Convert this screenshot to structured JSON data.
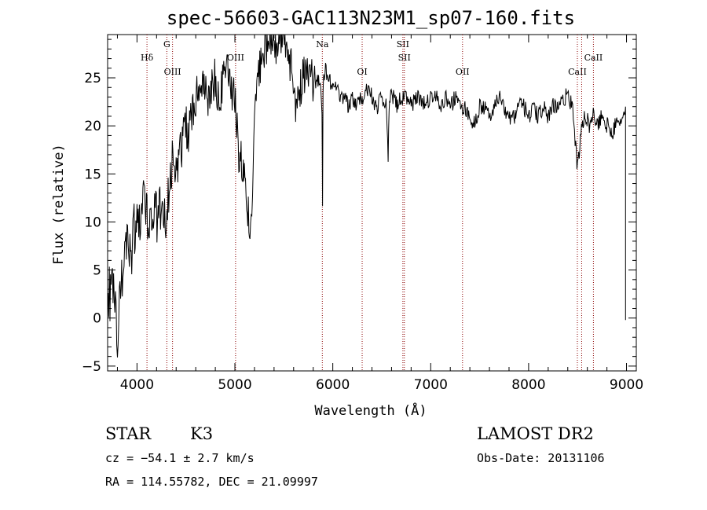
{
  "chart_data": {
    "type": "line",
    "title": "spec-56603-GAC113N23M1_sp07-160.fits",
    "xlabel": "Wavelength (Å)",
    "ylabel": "Flux (relative)",
    "xlim": [
      3700,
      9100
    ],
    "ylim": [
      -5.5,
      29.5
    ],
    "x_ticks": [
      4000,
      5000,
      6000,
      7000,
      8000,
      9000
    ],
    "x_tick_labels": [
      "4000",
      "5000",
      "6000",
      "7000",
      "8000",
      "9000"
    ],
    "y_ticks": [
      -5,
      0,
      5,
      10,
      15,
      20,
      25
    ],
    "y_tick_labels": [
      "−5",
      "0",
      "5",
      "10",
      "15",
      "20",
      "25"
    ],
    "grid": false,
    "line_color": "#000000",
    "marker_color": "#8b0000",
    "series": [
      {
        "x": [
          3705,
          3730,
          3755,
          3780,
          3800,
          3820,
          3850,
          3880,
          3910,
          3940,
          3970,
          4000,
          4030,
          4060,
          4090,
          4120,
          4150,
          4180,
          4210,
          4240,
          4270,
          4300,
          4330,
          4360,
          4400,
          4440,
          4480,
          4520,
          4560,
          4600,
          4640,
          4680,
          4720,
          4760,
          4800,
          4840,
          4880,
          4920,
          4960,
          5000,
          5040,
          5080,
          5120,
          5160,
          5180,
          5200,
          5230,
          5260,
          5300,
          5340,
          5380,
          5420,
          5460,
          5500,
          5540,
          5580,
          5620,
          5660,
          5700,
          5740,
          5780,
          5820,
          5860,
          5890,
          5895,
          5900,
          5920,
          5960,
          6000,
          6040,
          6080,
          6120,
          6160,
          6200,
          6250,
          6300,
          6350,
          6400,
          6450,
          6500,
          6550,
          6565,
          6580,
          6620,
          6660,
          6700,
          6750,
          6800,
          6850,
          6900,
          6950,
          7000,
          7050,
          7100,
          7150,
          7200,
          7250,
          7300,
          7350,
          7400,
          7450,
          7500,
          7550,
          7600,
          7650,
          7700,
          7750,
          7800,
          7850,
          7900,
          7950,
          8000,
          8050,
          8100,
          8150,
          8200,
          8250,
          8300,
          8350,
          8400,
          8450,
          8500,
          8540,
          8580,
          8620,
          8660,
          8700,
          8740,
          8780,
          8820,
          8860,
          8900,
          8950,
          8990
        ],
        "y": [
          3,
          2,
          4,
          1,
          -1.5,
          3,
          5,
          6,
          8,
          7,
          9,
          10,
          11,
          12,
          10,
          11,
          8,
          10,
          11,
          12,
          11,
          10,
          13,
          16,
          15,
          17,
          20,
          19,
          21,
          23,
          24,
          25,
          22,
          24,
          25,
          22,
          25,
          26,
          24,
          23,
          17,
          16,
          12,
          9,
          13,
          21,
          25,
          26,
          28,
          29,
          29,
          28,
          30,
          29,
          27,
          26,
          22,
          24,
          25,
          26,
          25,
          24,
          25,
          22,
          12,
          24,
          26,
          25,
          24,
          24,
          23,
          23,
          22,
          23,
          22,
          23,
          24,
          23,
          22,
          23,
          22,
          17,
          23,
          23,
          22,
          23,
          23,
          22,
          23,
          23,
          22,
          23,
          23,
          22,
          23,
          22,
          23,
          22,
          22,
          21,
          20,
          22,
          22,
          21,
          22,
          23,
          22,
          21,
          21,
          22,
          22,
          21,
          22,
          21,
          22,
          21,
          22,
          22,
          23,
          23,
          22,
          15.5,
          20,
          21,
          20,
          21,
          20,
          21,
          20,
          20,
          19,
          21,
          20,
          22
        ]
      }
    ],
    "line_markers": [
      {
        "x": 4102,
        "label": "Hδ",
        "row": "upper"
      },
      {
        "x": 4305,
        "label": "G",
        "row": "top"
      },
      {
        "x": 4363,
        "label": "OIII",
        "row": "lower"
      },
      {
        "x": 5007,
        "label": "OIII",
        "row": "upper"
      },
      {
        "x": 5893,
        "label": "Na",
        "row": "top"
      },
      {
        "x": 6300,
        "label": "OI",
        "row": "lower"
      },
      {
        "x": 6716,
        "label": "SII",
        "row": "top"
      },
      {
        "x": 6731,
        "label": "SII",
        "row": "upper"
      },
      {
        "x": 7325,
        "label": "OII",
        "row": "lower"
      },
      {
        "x": 8498,
        "label": "CaII",
        "row": "lower"
      },
      {
        "x": 8542,
        "label": "",
        "row": "none"
      },
      {
        "x": 8662,
        "label": "CaII",
        "row": "upper"
      }
    ]
  },
  "info": {
    "object_class": "STAR",
    "subclass": "K3",
    "survey": "LAMOST DR2",
    "redshift": "cz = −54.1 ± 2.7 km/s",
    "obs_date": "Obs-Date: 20131106",
    "coords": "RA = 114.55782, DEC =  21.09997"
  }
}
